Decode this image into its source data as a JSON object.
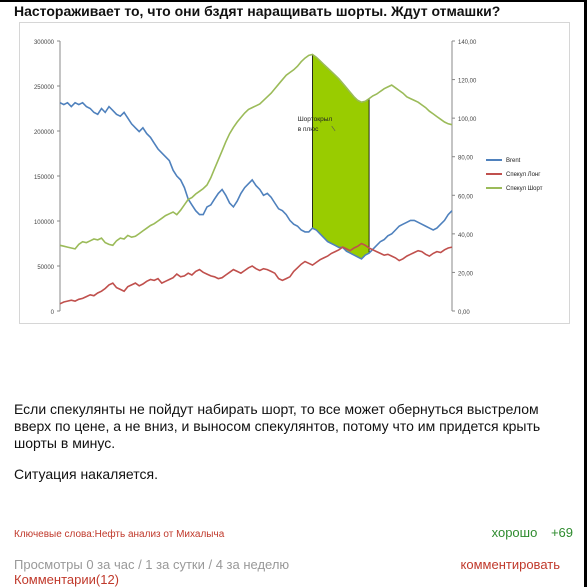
{
  "post": {
    "title": "Настораживает то, что они бздят наращивать шорты. Ждут отмашки?",
    "body": [
      "Если спекулянты не пойдут набирать шорт, то все может обернуться выстрелом вверх по цене, а не вниз,  и выносом спекулянтов, потому что им придется крыть шорты в минус.",
      "Ситуация накаляется."
    ],
    "tags_label": "Ключевые слова:",
    "tags": "Нефть анализ от Михалыча",
    "rating_label": "хорошо",
    "rating_value": "+69",
    "views": "Просмотры 0 за час / 1 за сутки / 4 за неделю",
    "comment_link": "комментировать",
    "comments_label": "Комментарии",
    "comments_count": "(12)"
  },
  "chart_data": {
    "type": "line",
    "annotation": "Шортокрыл в плюс",
    "y_left": {
      "min": 0,
      "max": 300000,
      "ticks": [
        "0",
        "50000",
        "100000",
        "150000",
        "200000",
        "250000",
        "300000"
      ]
    },
    "y_right": {
      "min": 0,
      "max": 140,
      "ticks": [
        "0,00",
        "20,00",
        "40,00",
        "60,00",
        "80,00",
        "100,00",
        "120,00",
        "140,00"
      ]
    },
    "series": [
      {
        "name": "Brent",
        "color": "#4f81bd",
        "axis": "right",
        "values": [
          108,
          107,
          108,
          106,
          108,
          107,
          108,
          106,
          105,
          103,
          102,
          105,
          103,
          106,
          104,
          102,
          101,
          103,
          100,
          97,
          95,
          93,
          95,
          92,
          90,
          87,
          84,
          82,
          80,
          78,
          73,
          70,
          68,
          64,
          58,
          55,
          52,
          50,
          50,
          54,
          55,
          58,
          61,
          63,
          60,
          56,
          54,
          57,
          61,
          64,
          66,
          68,
          65,
          63,
          60,
          61,
          59,
          56,
          53,
          52,
          50,
          47,
          45,
          44,
          42,
          41,
          41,
          43,
          42,
          40,
          38,
          36,
          35,
          34,
          33,
          33,
          31,
          30,
          29,
          28,
          27,
          29,
          30,
          32,
          34,
          36,
          37,
          39,
          40,
          42,
          44,
          45,
          46,
          47,
          47,
          46,
          45,
          44,
          43,
          42,
          43,
          45,
          47,
          50,
          52
        ]
      },
      {
        "name": "Спекул Лонг",
        "color": "#c0504d",
        "axis": "left",
        "values": [
          8000,
          10000,
          11000,
          12000,
          11000,
          13000,
          14000,
          16000,
          18000,
          17000,
          20000,
          22000,
          25000,
          29000,
          31000,
          26000,
          24000,
          22000,
          27000,
          29000,
          31000,
          28000,
          30000,
          33000,
          35000,
          34000,
          36000,
          31000,
          33000,
          35000,
          37000,
          41000,
          38000,
          39000,
          42000,
          40000,
          44000,
          46000,
          43000,
          41000,
          39000,
          38000,
          36000,
          37000,
          40000,
          43000,
          46000,
          44000,
          42000,
          45000,
          48000,
          50000,
          47000,
          45000,
          47000,
          46000,
          44000,
          42000,
          36000,
          34000,
          36000,
          38000,
          44000,
          48000,
          52000,
          55000,
          53000,
          51000,
          54000,
          57000,
          59000,
          61000,
          64000,
          66000,
          68000,
          71000,
          69000,
          67000,
          70000,
          72000,
          75000,
          73000,
          70000,
          68000,
          66000,
          64000,
          62000,
          63000,
          61000,
          59000,
          56000,
          58000,
          61000,
          63000,
          65000,
          67000,
          66000,
          63000,
          61000,
          64000,
          66000,
          65000,
          68000,
          70000,
          71000
        ]
      },
      {
        "name": "Спекул Шорт",
        "color": "#9bbb59",
        "axis": "left",
        "values": [
          73000,
          72000,
          71000,
          70000,
          69000,
          74000,
          77000,
          76000,
          78000,
          80000,
          79000,
          81000,
          76000,
          74000,
          73000,
          78000,
          81000,
          80000,
          84000,
          82000,
          83000,
          86000,
          89000,
          92000,
          95000,
          97000,
          100000,
          103000,
          106000,
          108000,
          110000,
          107000,
          112000,
          118000,
          124000,
          126000,
          130000,
          133000,
          136000,
          140000,
          148000,
          158000,
          168000,
          178000,
          188000,
          197000,
          204000,
          210000,
          215000,
          220000,
          224000,
          226000,
          228000,
          230000,
          234000,
          238000,
          242000,
          247000,
          252000,
          257000,
          262000,
          265000,
          268000,
          272000,
          277000,
          281000,
          284000,
          285000,
          282000,
          278000,
          274000,
          270000,
          266000,
          262000,
          258000,
          253000,
          248000,
          243000,
          238000,
          234000,
          232000,
          233000,
          236000,
          239000,
          241000,
          244000,
          247000,
          249000,
          251000,
          248000,
          245000,
          242000,
          238000,
          236000,
          234000,
          232000,
          229000,
          226000,
          222000,
          219000,
          216000,
          213000,
          210000,
          208000,
          207000
        ]
      }
    ],
    "fill_color": "#99cc00",
    "legend_position": "right"
  }
}
